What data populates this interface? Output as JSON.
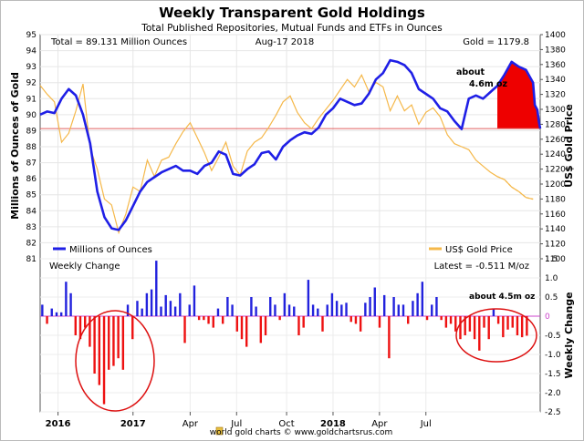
{
  "chart_data": [
    {
      "type": "line",
      "title": "Weekly Transparent Gold Holdings",
      "subtitle": "Total Published Repositories, Mutual Funds and ETFs in Ounces",
      "info_left": "Total = 89.131 Million Ounces",
      "info_center": "Aug-17  2018",
      "info_right": "Gold = 1179.8",
      "ylabel_left": "Millions of Ounces of Gold",
      "ylabel_right": "US$ Gold Price",
      "ylim_left": [
        81,
        95
      ],
      "ylim_right": [
        1100,
        1400
      ],
      "yticks_left": [
        "81",
        "82",
        "83",
        "84",
        "85",
        "86",
        "87",
        "88",
        "89",
        "90",
        "91",
        "92",
        "93",
        "94",
        "95"
      ],
      "yticks_right": [
        "1100",
        "1120",
        "1140",
        "1160",
        "1180",
        "1200",
        "1220",
        "1240",
        "1260",
        "1280",
        "1300",
        "1320",
        "1340",
        "1360",
        "1380",
        "1400"
      ],
      "xlim_week": [
        0,
        140
      ],
      "x_ticks": [
        {
          "label": "2016",
          "week": 5
        },
        {
          "label": "2017",
          "week": 26
        },
        {
          "label": "Apr",
          "week": 42
        },
        {
          "label": "Jul",
          "week": 55
        },
        {
          "label": "Oct",
          "week": 69
        },
        {
          "label": "2018",
          "week": 82
        },
        {
          "label": "Apr",
          "week": 95
        },
        {
          "label": "Jul",
          "week": 108
        }
      ],
      "legend": [
        {
          "name": "Millions of Ounces",
          "color": "#1f1fe6"
        },
        {
          "name": "US$ Gold Price",
          "color": "#f5b84a"
        }
      ],
      "reference_line": 89.131,
      "annotation": {
        "text_line1": "about",
        "text_line2": "4.6m oz"
      },
      "series": [
        {
          "name": "Millions of Ounces",
          "axis": "left",
          "color": "#1f1fe6",
          "weeks": [
            0,
            2,
            4,
            6,
            8,
            10,
            12,
            14,
            16,
            18,
            20,
            22,
            24,
            26,
            28,
            30,
            32,
            34,
            36,
            38,
            40,
            42,
            44,
            46,
            48,
            50,
            52,
            54,
            56,
            58,
            60,
            62,
            64,
            66,
            68,
            70,
            72,
            74,
            76,
            78,
            80,
            82,
            84,
            86,
            88,
            90,
            92,
            94,
            96,
            98,
            100,
            102,
            104,
            106,
            108,
            110,
            112,
            114,
            116,
            118,
            120,
            122,
            124,
            126,
            128,
            130,
            132,
            134,
            136,
            138
          ],
          "values": [
            90.0,
            90.2,
            90.1,
            91.0,
            91.6,
            91.2,
            90.0,
            88.2,
            85.2,
            83.6,
            82.9,
            82.8,
            83.4,
            84.3,
            85.2,
            85.8,
            86.1,
            86.4,
            86.6,
            86.8,
            86.5,
            86.5,
            86.3,
            86.8,
            87.0,
            87.7,
            87.5,
            86.3,
            86.2,
            86.6,
            86.9,
            87.6,
            87.7,
            87.2,
            88.0,
            88.4,
            88.7,
            88.9,
            88.8,
            89.2,
            90.0,
            90.4,
            91.0,
            90.8,
            90.6,
            90.7,
            91.3,
            92.2,
            92.6,
            93.4,
            93.3,
            93.1,
            92.6,
            91.6,
            91.3,
            91.0,
            90.4,
            90.2,
            89.6,
            89.1,
            91.0,
            91.2,
            91.0,
            91.4,
            91.8,
            92.5,
            93.3,
            93.0,
            92.8,
            92.0
          ],
          "end_values": [
            90.6,
            90.3,
            89.6,
            89.131
          ]
        },
        {
          "name": "US$ Gold Price",
          "axis": "right",
          "color": "#f5b84a",
          "weeks": [
            0,
            2,
            4,
            6,
            8,
            10,
            12,
            14,
            16,
            18,
            20,
            22,
            24,
            26,
            28,
            30,
            32,
            34,
            36,
            38,
            40,
            42,
            44,
            46,
            48,
            50,
            52,
            54,
            56,
            58,
            60,
            62,
            64,
            66,
            68,
            70,
            72,
            74,
            76,
            78,
            80,
            82,
            84,
            86,
            88,
            90,
            92,
            94,
            96,
            98,
            100,
            102,
            104,
            106,
            108,
            110,
            112,
            114,
            116,
            118,
            120,
            122,
            124,
            126,
            128,
            130,
            132,
            134,
            136,
            138
          ],
          "values": [
            1332,
            1320,
            1310,
            1256,
            1268,
            1298,
            1334,
            1248,
            1220,
            1180,
            1172,
            1135,
            1160,
            1196,
            1190,
            1232,
            1210,
            1232,
            1236,
            1254,
            1270,
            1282,
            1262,
            1242,
            1218,
            1236,
            1256,
            1224,
            1212,
            1244,
            1256,
            1262,
            1276,
            1292,
            1310,
            1318,
            1296,
            1282,
            1274,
            1288,
            1300,
            1312,
            1326,
            1340,
            1330,
            1346,
            1324,
            1336,
            1330,
            1298,
            1318,
            1298,
            1306,
            1280,
            1296,
            1302,
            1290,
            1266,
            1254,
            1250,
            1246,
            1232,
            1224,
            1216,
            1210,
            1206,
            1196,
            1190,
            1182,
            1179.8
          ],
          "end_values": [
            1212,
            1202,
            1192,
            1179.8
          ]
        }
      ]
    },
    {
      "type": "bar",
      "title": "Weekly Change",
      "info_right": "Latest = -0.511 M/oz",
      "ylabel_right": "Weekly Change",
      "ylim": [
        -2.5,
        1.5
      ],
      "yticks": [
        "1.5",
        "1.0",
        "0.5",
        "0",
        "-0.5",
        "-1.0",
        "-1.5",
        "-2.0",
        "-2.5"
      ],
      "annotation": "about 4.5m oz",
      "positive_color": "#2222dd",
      "negative_color": "#ee1111",
      "values": [
        0.3,
        -0.2,
        0.2,
        0.1,
        0.1,
        0.9,
        0.6,
        -0.5,
        -0.6,
        -0.3,
        -0.8,
        -1.5,
        -1.8,
        -2.3,
        -1.4,
        -1.3,
        -1.1,
        -1.4,
        0.3,
        -0.6,
        0.4,
        0.2,
        0.6,
        0.7,
        1.45,
        0.25,
        0.55,
        0.4,
        0.25,
        0.6,
        -0.7,
        0.3,
        0.8,
        -0.1,
        -0.1,
        -0.2,
        -0.3,
        0.2,
        -0.2,
        0.5,
        0.3,
        -0.4,
        -0.6,
        -0.8,
        0.5,
        0.25,
        -0.7,
        -0.5,
        0.5,
        0.3,
        -0.1,
        0.6,
        0.3,
        0.25,
        -0.5,
        -0.3,
        0.95,
        0.3,
        0.2,
        -0.4,
        0.3,
        0.6,
        0.4,
        0.3,
        0.35,
        -0.15,
        -0.2,
        -0.4,
        0.35,
        0.5,
        0.75,
        -0.3,
        0.55,
        -1.1,
        0.5,
        0.3,
        0.3,
        -0.2,
        0.4,
        0.6,
        0.9,
        -0.1,
        0.3,
        0.5,
        -0.1,
        -0.3,
        -0.2,
        -0.4,
        -0.6,
        -0.5,
        -0.4,
        -0.6,
        -0.9,
        -0.3,
        -0.6,
        0.2,
        -0.2,
        -0.55,
        -0.35,
        -0.3,
        -0.5,
        -0.55,
        -0.511
      ],
      "first_week": 0.6,
      "week_step": 1.33
    }
  ],
  "footer": {
    "text": "world gold charts © www.goldchartsrus.com"
  }
}
